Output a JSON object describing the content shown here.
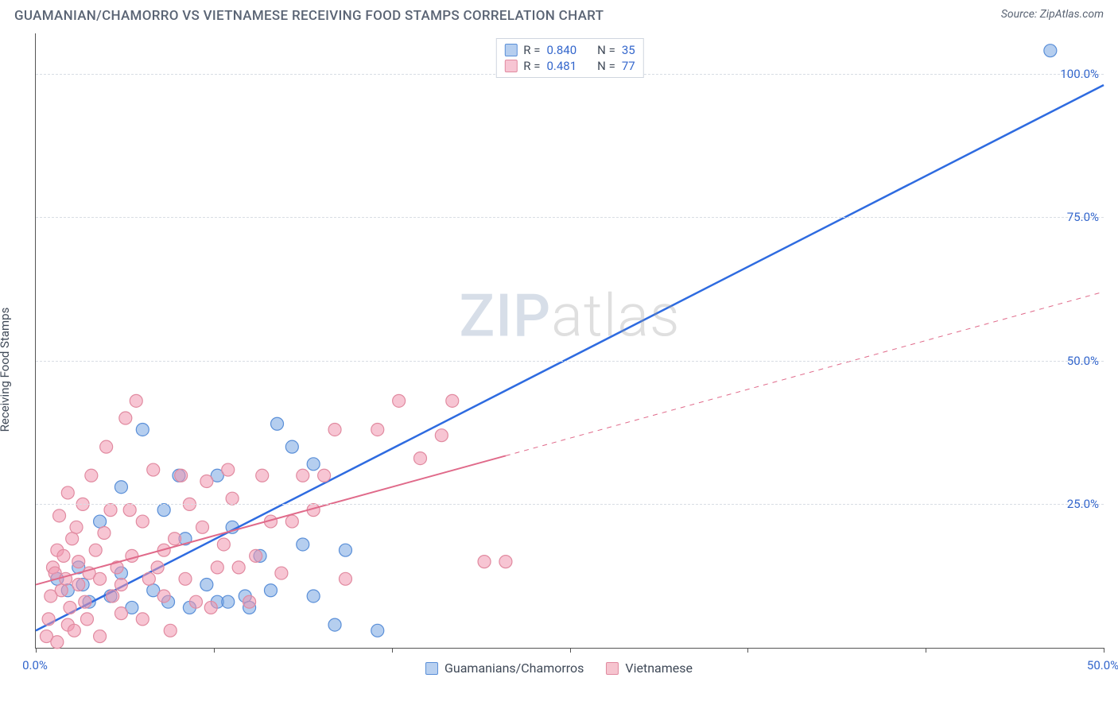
{
  "header": {
    "title": "GUAMANIAN/CHAMORRO VS VIETNAMESE RECEIVING FOOD STAMPS CORRELATION CHART",
    "source_label": "Source: ",
    "source_value": "ZipAtlas.com"
  },
  "watermark": {
    "part1": "ZIP",
    "part2": "atlas"
  },
  "chart": {
    "type": "scatter",
    "background_color": "#ffffff",
    "grid_color": "#d8dde4",
    "axis_color": "#555555",
    "tick_label_color": "#3366cc",
    "text_color": "#404a58",
    "xlim": [
      0,
      50
    ],
    "ylim": [
      0,
      107
    ],
    "y_ticks": [
      25,
      50,
      75,
      100
    ],
    "y_tick_labels": [
      "25.0%",
      "50.0%",
      "75.0%",
      "100.0%"
    ],
    "x_ticks": [
      0,
      8.33,
      16.67,
      25,
      33.33,
      41.67,
      50
    ],
    "x_tick_labels_visible": {
      "first": "0.0%",
      "last": "50.0%"
    },
    "ylabel": "Receiving Food Stamps",
    "legend_top": {
      "rows": [
        {
          "r_label": "R =",
          "r_value": "0.840",
          "n_label": "N =",
          "n_value": "35"
        },
        {
          "r_label": "R =",
          "r_value": "0.481",
          "n_label": "N =",
          "n_value": "77"
        }
      ]
    },
    "legend_bottom": {
      "items": [
        {
          "label": "Guamanians/Chamorros",
          "fill": "#b8d0f0",
          "stroke": "#5a8fd8"
        },
        {
          "label": "Vietnamese",
          "fill": "#f6c4cf",
          "stroke": "#e18aa0"
        }
      ]
    },
    "series": [
      {
        "name": "Guamanians/Chamorros",
        "marker_fill": "rgba(120,165,225,0.55)",
        "marker_stroke": "#5a8fd8",
        "marker_radius": 8,
        "trend_color": "#2e6be0",
        "trend_width": 2.5,
        "trend_style": "solid",
        "trend_solid_end_x": 50,
        "trend": {
          "x1": 0,
          "y1": 3,
          "x2": 50,
          "y2": 98
        },
        "points": [
          [
            47.5,
            104
          ],
          [
            1,
            12
          ],
          [
            1.5,
            10
          ],
          [
            2,
            14
          ],
          [
            2.2,
            11
          ],
          [
            2.5,
            8
          ],
          [
            3,
            22
          ],
          [
            3.5,
            9
          ],
          [
            4,
            13
          ],
          [
            4,
            28
          ],
          [
            4.5,
            7
          ],
          [
            5,
            38
          ],
          [
            5.5,
            10
          ],
          [
            6,
            24
          ],
          [
            6.2,
            8
          ],
          [
            6.7,
            30
          ],
          [
            7,
            19
          ],
          [
            7.2,
            7
          ],
          [
            8,
            11
          ],
          [
            8.5,
            8
          ],
          [
            9,
            8
          ],
          [
            9.2,
            21
          ],
          [
            9.8,
            9
          ],
          [
            10,
            7
          ],
          [
            11,
            10
          ],
          [
            11.3,
            39
          ],
          [
            12,
            35
          ],
          [
            12.5,
            18
          ],
          [
            13,
            9
          ],
          [
            13,
            32
          ],
          [
            14,
            4
          ],
          [
            14.5,
            17
          ],
          [
            16,
            3
          ],
          [
            8.5,
            30
          ],
          [
            10.5,
            16
          ]
        ]
      },
      {
        "name": "Vietnamese",
        "marker_fill": "rgba(240,150,175,0.55)",
        "marker_stroke": "#e18aa0",
        "marker_radius": 8,
        "trend_color": "#e06a8a",
        "trend_width": 2,
        "trend_style": "solid-then-dashed",
        "trend_solid_end_x": 22,
        "trend": {
          "x1": 0,
          "y1": 11,
          "x2": 50,
          "y2": 62
        },
        "points": [
          [
            0.5,
            2
          ],
          [
            0.6,
            5
          ],
          [
            0.7,
            9
          ],
          [
            0.8,
            14
          ],
          [
            0.9,
            13
          ],
          [
            1,
            17
          ],
          [
            1,
            1
          ],
          [
            1.1,
            23
          ],
          [
            1.2,
            10
          ],
          [
            1.3,
            16
          ],
          [
            1.4,
            12
          ],
          [
            1.5,
            4
          ],
          [
            1.5,
            27
          ],
          [
            1.6,
            7
          ],
          [
            1.7,
            19
          ],
          [
            1.8,
            3
          ],
          [
            1.9,
            21
          ],
          [
            2,
            11
          ],
          [
            2,
            15
          ],
          [
            2.2,
            25
          ],
          [
            2.3,
            8
          ],
          [
            2.4,
            5
          ],
          [
            2.5,
            13
          ],
          [
            2.6,
            30
          ],
          [
            2.8,
            17
          ],
          [
            3,
            2
          ],
          [
            3,
            12
          ],
          [
            3.2,
            20
          ],
          [
            3.3,
            35
          ],
          [
            3.5,
            24
          ],
          [
            3.6,
            9
          ],
          [
            3.8,
            14
          ],
          [
            4,
            6
          ],
          [
            4,
            11
          ],
          [
            4.2,
            40
          ],
          [
            4.4,
            24
          ],
          [
            4.5,
            16
          ],
          [
            4.7,
            43
          ],
          [
            5,
            5
          ],
          [
            5,
            22
          ],
          [
            5.3,
            12
          ],
          [
            5.5,
            31
          ],
          [
            5.7,
            14
          ],
          [
            6,
            9
          ],
          [
            6,
            17
          ],
          [
            6.3,
            3
          ],
          [
            6.5,
            19
          ],
          [
            6.8,
            30
          ],
          [
            7,
            12
          ],
          [
            7.2,
            25
          ],
          [
            7.5,
            8
          ],
          [
            7.8,
            21
          ],
          [
            8,
            29
          ],
          [
            8.2,
            7
          ],
          [
            8.5,
            14
          ],
          [
            8.8,
            18
          ],
          [
            9,
            31
          ],
          [
            9.2,
            26
          ],
          [
            9.5,
            14
          ],
          [
            10,
            8
          ],
          [
            10.3,
            16
          ],
          [
            10.6,
            30
          ],
          [
            11,
            22
          ],
          [
            11.5,
            13
          ],
          [
            12,
            22
          ],
          [
            12.5,
            30
          ],
          [
            13,
            24
          ],
          [
            13.5,
            30
          ],
          [
            14,
            38
          ],
          [
            14.5,
            12
          ],
          [
            16,
            38
          ],
          [
            17,
            43
          ],
          [
            18,
            33
          ],
          [
            19,
            37
          ],
          [
            19.5,
            43
          ],
          [
            21,
            15
          ],
          [
            22,
            15
          ]
        ]
      }
    ]
  }
}
